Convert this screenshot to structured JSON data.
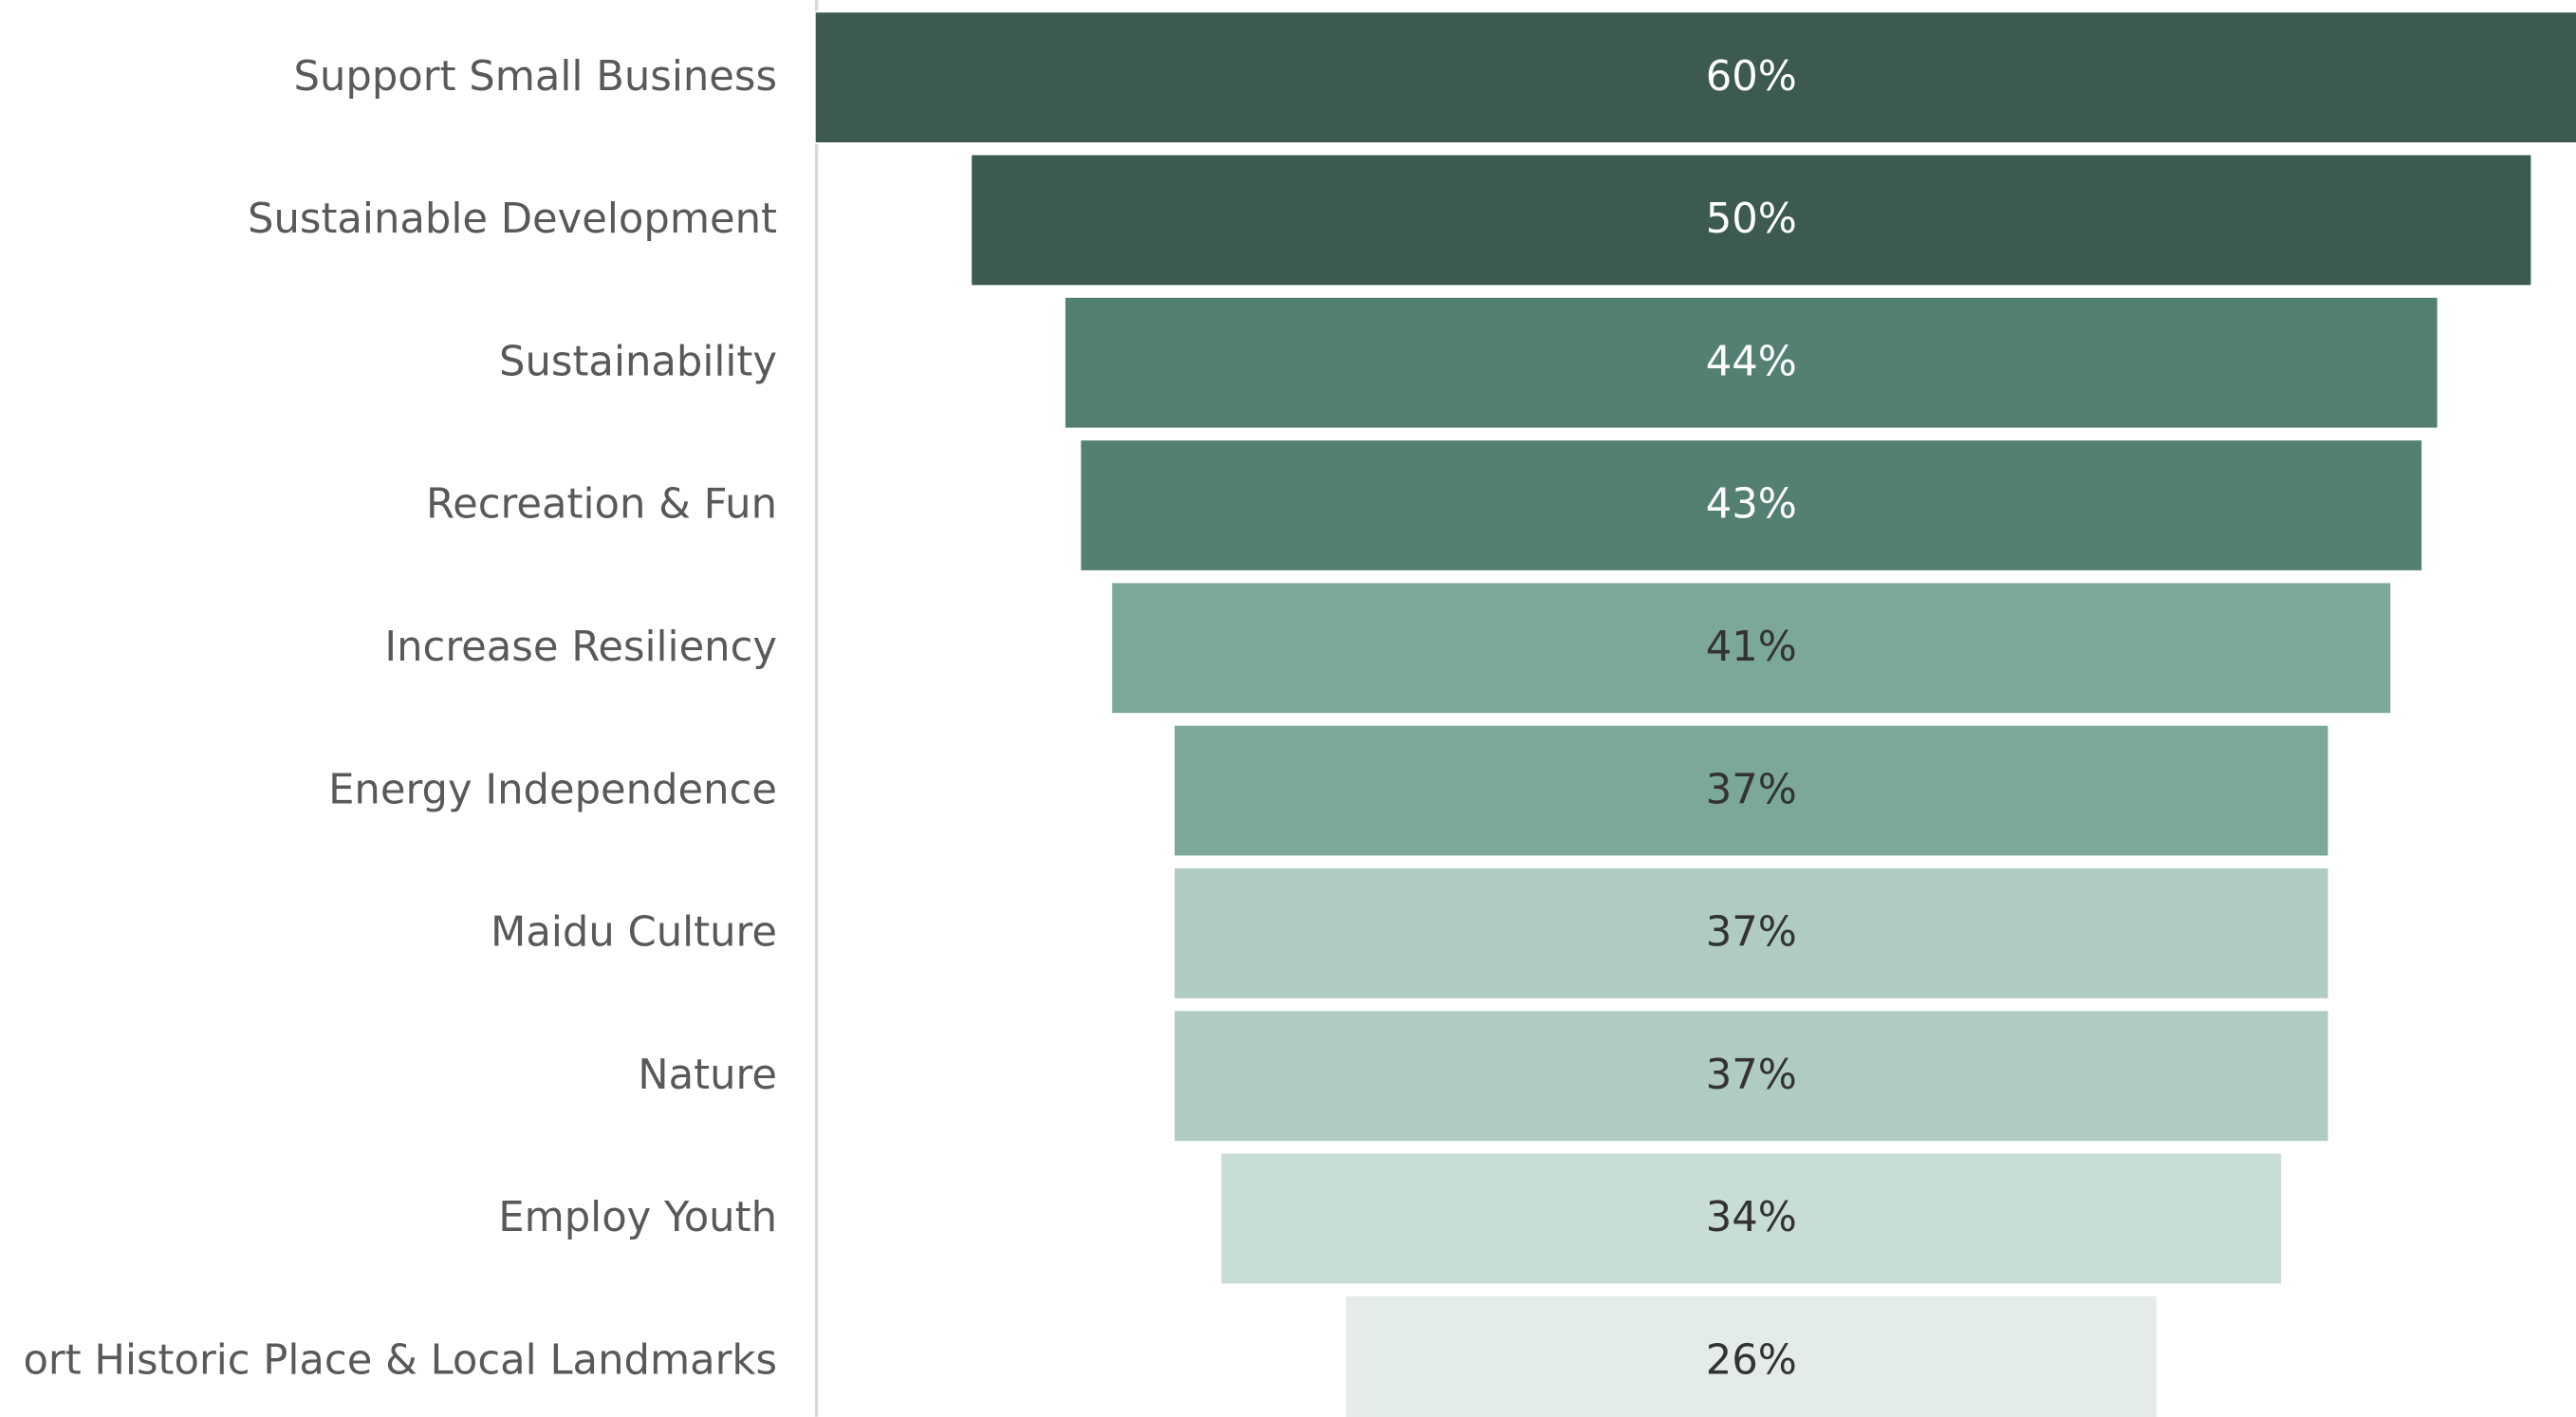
{
  "chart_data": {
    "type": "funnel",
    "categories": [
      "Support Small Business",
      "Sustainable Development",
      "Sustainability",
      "Recreation & Fun",
      "Increase Resiliency",
      "Energy Independence",
      "Maidu Culture",
      "Nature",
      "Employ Youth",
      "ort Historic Place & Local Landmarks"
    ],
    "values": [
      60,
      50,
      44,
      43,
      41,
      37,
      37,
      37,
      34,
      26
    ],
    "value_labels": [
      "60%",
      "50%",
      "44%",
      "43%",
      "41%",
      "37%",
      "37%",
      "37%",
      "34%",
      "26%"
    ],
    "colors": [
      "#3d5a50",
      "#3d5a50",
      "#548073",
      "#548073",
      "#7ba89b",
      "#7ba89b",
      "#b0cbc3",
      "#b0cbc3",
      "#c9ddd7",
      "#e3ece9"
    ]
  }
}
